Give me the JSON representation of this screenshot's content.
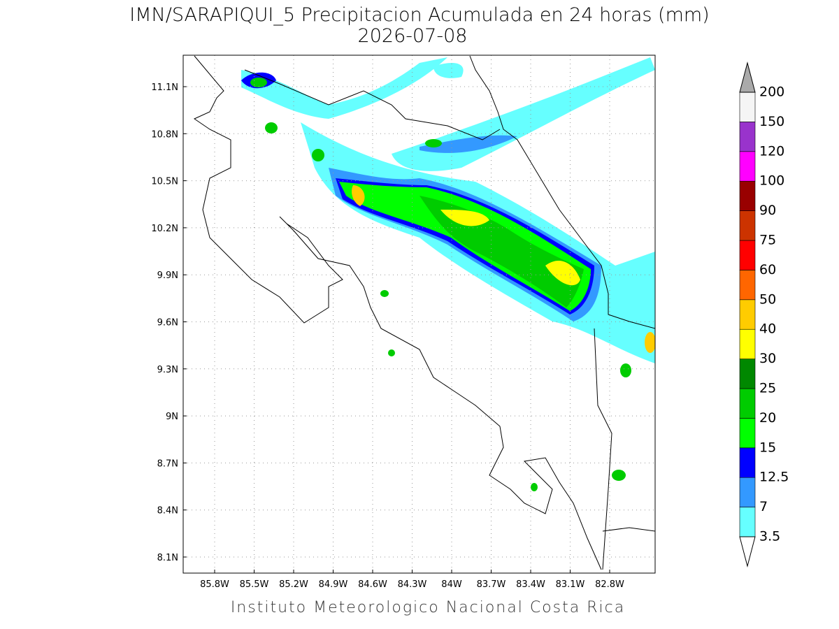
{
  "title": "IMN/SARAPIQUI_5 Precipitacion Acumulada en 24 horas (mm)",
  "subtitle": "2026-07-08",
  "lat_labels": [
    "11.1N",
    "10.8N",
    "10.5N",
    "10.2N",
    "9.9N",
    "9.6N",
    "9.3N",
    "9N",
    "8.7N",
    "8.4N",
    "8.1N"
  ],
  "lon_labels": [
    "85.8W",
    "85.5W",
    "85.2W",
    "84.9W",
    "84.6W",
    "84.3W",
    "84W",
    "83.7W",
    "83.4W",
    "83.1W",
    "82.8W"
  ],
  "colorbar": {
    "levels": [
      3.5,
      7,
      12.5,
      15,
      20,
      25,
      30,
      40,
      50,
      60,
      75,
      90,
      100,
      120,
      150,
      200
    ],
    "colors": [
      "#66ffff",
      "#3399ff",
      "#0000ff",
      "#00ff00",
      "#00cc00",
      "#008800",
      "#ffff00",
      "#ffcc00",
      "#ff6600",
      "#ff0000",
      "#cc3300",
      "#990000",
      "#ff00ff",
      "#9933cc",
      "#f5f5f5"
    ],
    "over_color": "#aaaaaa",
    "under_color": "#ffffff"
  },
  "footer": "Instituto Meteorologico Nacional Costa Rica"
}
